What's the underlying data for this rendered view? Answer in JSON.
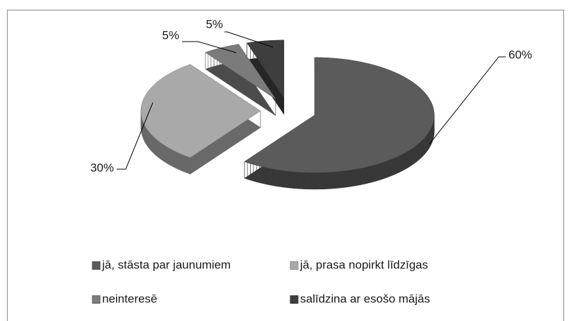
{
  "chart_data": {
    "type": "pie3d",
    "categories": [
      "jā, stāsta par jaunumiem",
      "jā, prasa nopirkt līdzīgas",
      "neinteresē",
      "salīdzina ar esošo mājās"
    ],
    "values": [
      60,
      30,
      5,
      5
    ],
    "value_labels": [
      "60%",
      "30%",
      "5%",
      "5%"
    ],
    "colors": [
      "#5b5b5b",
      "#a9a9a9",
      "#7b7b7b",
      "#3e3e3e"
    ],
    "legend": "bottom"
  }
}
